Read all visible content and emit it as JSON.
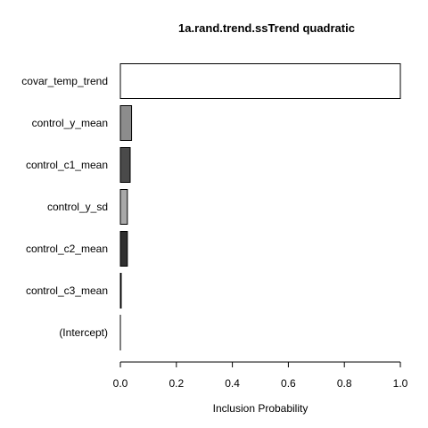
{
  "chart_data": {
    "type": "bar",
    "orientation": "horizontal",
    "title": "1a.rand.trend.ssTrend quadratic",
    "xlabel": "Inclusion Probability",
    "ylabel": "",
    "xlim": [
      0,
      1
    ],
    "xticks": [
      "0.0",
      "0.2",
      "0.4",
      "0.6",
      "0.8",
      "1.0"
    ],
    "categories": [
      "covar_temp_trend",
      "control_y_mean",
      "control_c1_mean",
      "control_y_sd",
      "control_c2_mean",
      "control_c3_mean",
      "(Intercept)"
    ],
    "values": [
      1.0,
      0.04,
      0.035,
      0.025,
      0.025,
      0.003,
      0.0
    ],
    "colors": [
      "#ffffff",
      "#8c8c8c",
      "#4a4a4a",
      "#a8a8a8",
      "#303030",
      "#000000",
      "#ffffff"
    ],
    "grid": false,
    "legend": "none"
  }
}
